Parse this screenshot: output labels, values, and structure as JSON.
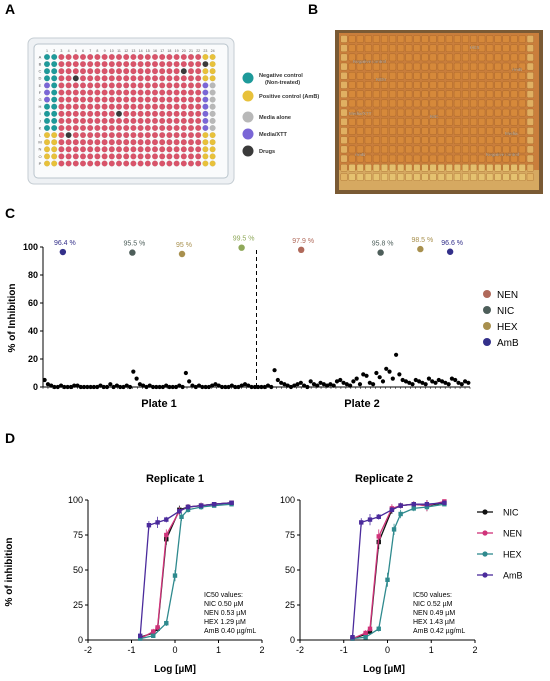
{
  "panel_labels": {
    "a": "A",
    "b": "B",
    "c": "C",
    "d": "D"
  },
  "panel_a": {
    "columns": [
      "1",
      "2",
      "3",
      "4",
      "5",
      "6",
      "7",
      "8",
      "9",
      "10",
      "11",
      "12",
      "13",
      "14",
      "15",
      "16",
      "17",
      "18",
      "19",
      "20",
      "21",
      "22",
      "23",
      "24"
    ],
    "rows": [
      "A",
      "B",
      "C",
      "D",
      "E",
      "F",
      "G",
      "H",
      "I",
      "J",
      "K",
      "L",
      "M",
      "N",
      "O",
      "P"
    ],
    "legend": [
      {
        "label": "Negative control",
        "sublabel": "(Non-treated)",
        "color": "#1e9a9a"
      },
      {
        "label": "Positive control (AmB)",
        "sublabel": "",
        "color": "#e8c13a"
      },
      {
        "label": "Media alone",
        "sublabel": "",
        "color": "#b8b8b8"
      },
      {
        "label": "Media/XTT",
        "sublabel": "",
        "color": "#7a66d6"
      },
      {
        "label": "Drugs",
        "sublabel": "",
        "color": "#3a3a3a"
      }
    ],
    "colors": {
      "well": "#d9546a",
      "plate": "#f4f6f8",
      "border": "#b9c4cc"
    }
  },
  "panel_b": {
    "annotations": [
      "HEX",
      "AmB",
      "Negative control",
      "NEN",
      "Media/XTT",
      "NIC",
      "Media",
      "AmB",
      "Negative control"
    ],
    "colors": {
      "frame": "#8a6a3a",
      "wells": "#d3883a",
      "strip": "#e8cf7a"
    }
  },
  "chart_data": [
    {
      "id": "C",
      "type": "scatter",
      "ylabel": "% of Inhibition",
      "xlabel": "",
      "ylim": [
        0,
        100
      ],
      "yticks": [
        0,
        20,
        40,
        60,
        80,
        100
      ],
      "group_labels": [
        "Plate 1",
        "Plate 2"
      ],
      "highlights": [
        {
          "name": "NEN",
          "x": 26,
          "y": 98,
          "label": "97.9 %",
          "color": "#b0695a"
        },
        {
          "name": "NIC",
          "x": 9,
          "y": 96,
          "label": "95.5 %",
          "color": "#4d5e5a"
        },
        {
          "name": "NIC",
          "x": 34,
          "y": 96,
          "label": "95.8 %",
          "color": "#4d5e5a"
        },
        {
          "name": "HEX",
          "x": 14,
          "y": 95,
          "label": "95 %",
          "color": "#a8904e"
        },
        {
          "name": "HEX",
          "x": 20,
          "y": 99.5,
          "label": "99.5 %",
          "color": "#8fa85a"
        },
        {
          "name": "HEX",
          "x": 38,
          "y": 98.5,
          "label": "98.5 %",
          "color": "#a8904e"
        },
        {
          "name": "AmB",
          "x": 2,
          "y": 96.4,
          "label": "96.4 %",
          "color": "#33308a"
        },
        {
          "name": "AmB",
          "x": 41,
          "y": 96.6,
          "label": "96.6 %",
          "color": "#33308a"
        }
      ],
      "screen_y": [
        5,
        2,
        1,
        0,
        0,
        1,
        0,
        0,
        0,
        1,
        1,
        0,
        0,
        0,
        0,
        0,
        0,
        1,
        0,
        0,
        2,
        0,
        1,
        0,
        0,
        1,
        0,
        11,
        6,
        2,
        1,
        0,
        1,
        0,
        0,
        0,
        0,
        1,
        0,
        0,
        0,
        1,
        0,
        10,
        4,
        1,
        0,
        1,
        0,
        0,
        0,
        1,
        2,
        1,
        0,
        0,
        0,
        1,
        0,
        0,
        1,
        2,
        1,
        0,
        0,
        0,
        0,
        0,
        1,
        0,
        12,
        5,
        3,
        2,
        1,
        0,
        1,
        2,
        3,
        1,
        0,
        4,
        2,
        1,
        3,
        2,
        1,
        2,
        1,
        4,
        5,
        3,
        2,
        1,
        4,
        6,
        2,
        9,
        8,
        3,
        2,
        10,
        7,
        4,
        13,
        11,
        6,
        23,
        9,
        5,
        4,
        3,
        2,
        5,
        4,
        3,
        2,
        6,
        4,
        3,
        5,
        4,
        3,
        2,
        6,
        5,
        3,
        2,
        4,
        3
      ],
      "legend": [
        {
          "name": "NEN",
          "color": "#b0695a"
        },
        {
          "name": "NIC",
          "color": "#4d5e5a"
        },
        {
          "name": "HEX",
          "color": "#a8904e"
        },
        {
          "name": "AmB",
          "color": "#33308a"
        }
      ],
      "divider_x": 21.5,
      "xlim": [
        0,
        43
      ]
    },
    {
      "id": "D1",
      "type": "line",
      "title": "Replicate 1",
      "xlabel": "Log [µM]",
      "ylabel": "% of inhibition",
      "xlim": [
        -2,
        2
      ],
      "ylim": [
        0,
        100
      ],
      "xticks": [
        -2,
        -1,
        0,
        1,
        2
      ],
      "yticks": [
        0,
        25,
        50,
        75,
        100
      ],
      "series": [
        {
          "name": "NIC",
          "color": "#111111",
          "x": [
            -0.8,
            -0.5,
            -0.4,
            -0.2,
            0.1,
            0.3,
            0.6,
            0.9,
            1.3
          ],
          "y": [
            2,
            5,
            8,
            72,
            93,
            95,
            96,
            97,
            98
          ],
          "err": [
            1,
            2,
            2,
            4,
            3,
            2,
            2,
            1,
            1
          ]
        },
        {
          "name": "NEN",
          "color": "#d0337a",
          "x": [
            -0.8,
            -0.5,
            -0.4,
            -0.2,
            0.1,
            0.3,
            0.6,
            0.9,
            1.3
          ],
          "y": [
            1,
            6,
            9,
            75,
            92,
            95,
            96,
            97,
            98
          ],
          "err": [
            1,
            2,
            2,
            4,
            3,
            2,
            2,
            1,
            1
          ]
        },
        {
          "name": "HEX",
          "color": "#2f8a8e",
          "x": [
            -0.8,
            -0.5,
            -0.2,
            0.0,
            0.15,
            0.3,
            0.6,
            0.9,
            1.3
          ],
          "y": [
            1,
            3,
            12,
            46,
            88,
            93,
            95,
            96,
            97
          ],
          "err": [
            1,
            1,
            2,
            4,
            3,
            2,
            2,
            1,
            1
          ]
        },
        {
          "name": "AmB",
          "color": "#4b2b9c",
          "x": [
            -0.8,
            -0.6,
            -0.4,
            -0.2,
            0.1,
            0.3,
            0.6,
            0.9,
            1.3
          ],
          "y": [
            3,
            82,
            84,
            86,
            92,
            95,
            96,
            97,
            98
          ],
          "err": [
            1,
            3,
            4,
            2,
            2,
            2,
            1,
            1,
            1
          ]
        }
      ],
      "ic50_title": "IC50 values:",
      "ic50_lines": [
        "NIC 0.50 µM",
        "NEN 0.53 µM",
        "HEX 1.29 µM",
        "AmB 0.40 µg/mL"
      ]
    },
    {
      "id": "D2",
      "type": "line",
      "title": "Replicate 2",
      "xlabel": "Log [µM]",
      "ylabel": "",
      "xlim": [
        -2,
        2
      ],
      "ylim": [
        0,
        100
      ],
      "xticks": [
        -2,
        -1,
        0,
        1,
        2
      ],
      "yticks": [
        0,
        25,
        50,
        75,
        100
      ],
      "series": [
        {
          "name": "NIC",
          "color": "#111111",
          "x": [
            -0.8,
            -0.5,
            -0.4,
            -0.2,
            0.1,
            0.3,
            0.6,
            0.9,
            1.3
          ],
          "y": [
            1,
            4,
            6,
            70,
            93,
            96,
            97,
            96,
            98
          ],
          "err": [
            1,
            2,
            2,
            5,
            3,
            2,
            2,
            4,
            1
          ]
        },
        {
          "name": "NEN",
          "color": "#d0337a",
          "x": [
            -0.8,
            -0.5,
            -0.4,
            -0.2,
            0.1,
            0.3,
            0.6,
            0.9,
            1.3
          ],
          "y": [
            1,
            5,
            8,
            74,
            94,
            96,
            97,
            96,
            99
          ],
          "err": [
            1,
            2,
            2,
            5,
            3,
            2,
            2,
            4,
            1
          ]
        },
        {
          "name": "HEX",
          "color": "#2f8a8e",
          "x": [
            -0.8,
            -0.5,
            -0.2,
            0.0,
            0.15,
            0.3,
            0.6,
            0.9,
            1.3
          ],
          "y": [
            1,
            2,
            8,
            43,
            79,
            90,
            94,
            95,
            97
          ],
          "err": [
            1,
            1,
            2,
            5,
            4,
            3,
            2,
            2,
            1
          ]
        },
        {
          "name": "AmB",
          "color": "#4b2b9c",
          "x": [
            -0.8,
            -0.6,
            -0.4,
            -0.2,
            0.1,
            0.3,
            0.6,
            0.9,
            1.3
          ],
          "y": [
            2,
            84,
            86,
            88,
            93,
            96,
            97,
            97,
            98
          ],
          "err": [
            1,
            3,
            4,
            2,
            2,
            2,
            1,
            1,
            1
          ]
        }
      ],
      "ic50_title": "IC50 values:",
      "ic50_lines": [
        "NIC 0.52 µM",
        "NEN 0.49 µM",
        "HEX 1.43 µM",
        "AmB 0.42 µg/mL"
      ]
    }
  ],
  "panel_d_legend": [
    {
      "name": "NIC",
      "color": "#111111"
    },
    {
      "name": "NEN",
      "color": "#d0337a"
    },
    {
      "name": "HEX",
      "color": "#2f8a8e"
    },
    {
      "name": "AmB",
      "color": "#4b2b9c"
    }
  ]
}
